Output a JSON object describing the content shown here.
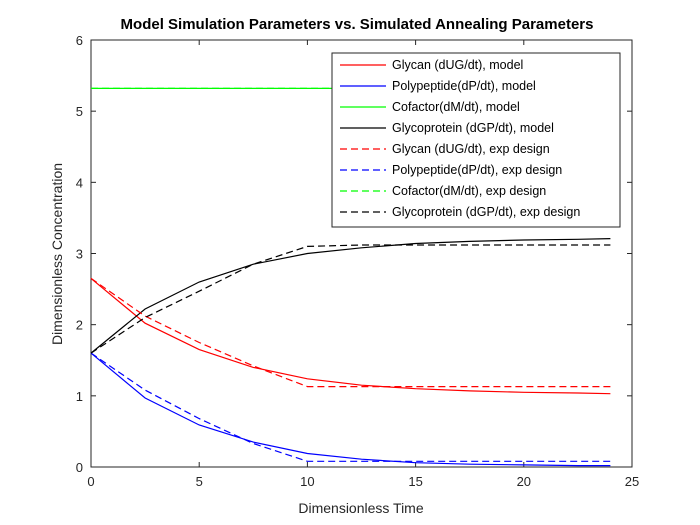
{
  "chart_data": {
    "type": "line",
    "title": "Model Simulation Parameters vs. Simulated Annealing Parameters",
    "xlabel": "Dimensionless Time",
    "ylabel": "Dimensionless Concentration",
    "xlim": [
      0,
      25
    ],
    "ylim": [
      0,
      6
    ],
    "xticks": [
      0,
      5,
      10,
      15,
      20,
      25
    ],
    "yticks": [
      0,
      1,
      2,
      3,
      4,
      5,
      6
    ],
    "grid": false,
    "legend_position": "top-right",
    "series": [
      {
        "name": "Glycan (dUG/dt), model",
        "color": "#ff0000",
        "dash": "solid",
        "x": [
          0,
          2.5,
          5,
          7.5,
          10,
          12.5,
          15,
          17.5,
          20,
          22.5,
          24
        ],
        "y": [
          2.65,
          2.02,
          1.65,
          1.4,
          1.24,
          1.15,
          1.1,
          1.07,
          1.05,
          1.04,
          1.03
        ]
      },
      {
        "name": "Polypeptide(dP/dt), model",
        "color": "#0000ff",
        "dash": "solid",
        "x": [
          0,
          2.5,
          5,
          7.5,
          10,
          12.5,
          15,
          17.5,
          20,
          22.5,
          24
        ],
        "y": [
          1.6,
          0.97,
          0.59,
          0.35,
          0.19,
          0.11,
          0.06,
          0.04,
          0.03,
          0.02,
          0.02
        ]
      },
      {
        "name": "Cofactor(dM/dt), model",
        "color": "#00ff00",
        "dash": "solid",
        "x": [
          0,
          24
        ],
        "y": [
          5.32,
          5.32
        ]
      },
      {
        "name": "Glycoprotein (dGP/dt), model",
        "color": "#000000",
        "dash": "solid",
        "x": [
          0,
          2.5,
          5,
          7.5,
          10,
          12.5,
          15,
          17.5,
          20,
          22.5,
          24
        ],
        "y": [
          1.6,
          2.22,
          2.6,
          2.85,
          3.0,
          3.08,
          3.14,
          3.17,
          3.19,
          3.2,
          3.21
        ]
      },
      {
        "name": "Glycan (dUG/dt), exp design",
        "color": "#ff0000",
        "dash": "dashed",
        "x": [
          0,
          2.5,
          5,
          7.5,
          10,
          12.5,
          15,
          17.5,
          20,
          22.5,
          24
        ],
        "y": [
          2.65,
          2.12,
          1.75,
          1.42,
          1.13,
          1.13,
          1.13,
          1.13,
          1.13,
          1.13,
          1.13
        ]
      },
      {
        "name": "Polypeptide(dP/dt), exp design",
        "color": "#0000ff",
        "dash": "dashed",
        "x": [
          0,
          2.5,
          5,
          7.5,
          10,
          12.5,
          15,
          17.5,
          20,
          22.5,
          24
        ],
        "y": [
          1.6,
          1.08,
          0.68,
          0.33,
          0.08,
          0.08,
          0.08,
          0.08,
          0.08,
          0.08,
          0.08
        ]
      },
      {
        "name": "Cofactor(dM/dt), exp design",
        "color": "#00ff00",
        "dash": "dashed",
        "x": [
          0,
          24
        ],
        "y": [
          5.32,
          5.32
        ]
      },
      {
        "name": "Glycoprotein (dGP/dt), exp design",
        "color": "#000000",
        "dash": "dashed",
        "x": [
          0,
          2.5,
          5,
          7.5,
          10,
          12.5,
          15,
          17.5,
          20,
          22.5,
          24
        ],
        "y": [
          1.6,
          2.1,
          2.47,
          2.85,
          3.1,
          3.12,
          3.12,
          3.12,
          3.12,
          3.12,
          3.12
        ]
      }
    ]
  }
}
